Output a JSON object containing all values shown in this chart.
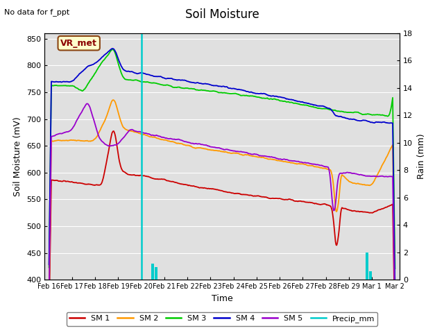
{
  "title": "Soil Moisture",
  "subtitle": "No data for f_ppt",
  "xlabel": "Time",
  "ylabel_left": "Soil Moisture (mV)",
  "ylabel_right": "Rain (mm)",
  "ylim_left": [
    400,
    860
  ],
  "ylim_right": [
    0,
    18
  ],
  "fig_bg_color": "#ffffff",
  "plot_bg_color": "#e0e0e0",
  "annotation_box_text": "VR_met",
  "annotation_box_color": "#ffffcc",
  "annotation_box_edge": "#8B4513",
  "colors": {
    "SM1": "#cc0000",
    "SM2": "#ff9900",
    "SM3": "#00cc00",
    "SM4": "#0000cc",
    "SM5": "#9900cc",
    "Precip": "#00cccc"
  },
  "x_tick_labels": [
    "Feb 16",
    "Feb 17",
    "Feb 18",
    "Feb 19",
    "Feb 20",
    "Feb 21",
    "Feb 22",
    "Feb 23",
    "Feb 24",
    "Feb 25",
    "Feb 26",
    "Feb 27",
    "Feb 28",
    "Feb 29",
    "Mar 1",
    "Mar 2"
  ],
  "grid_color": "#ffffff",
  "yticks_left": [
    400,
    450,
    500,
    550,
    600,
    650,
    700,
    750,
    800,
    850
  ],
  "yticks_right": [
    0,
    2,
    4,
    6,
    8,
    10,
    12,
    14,
    16,
    18
  ]
}
